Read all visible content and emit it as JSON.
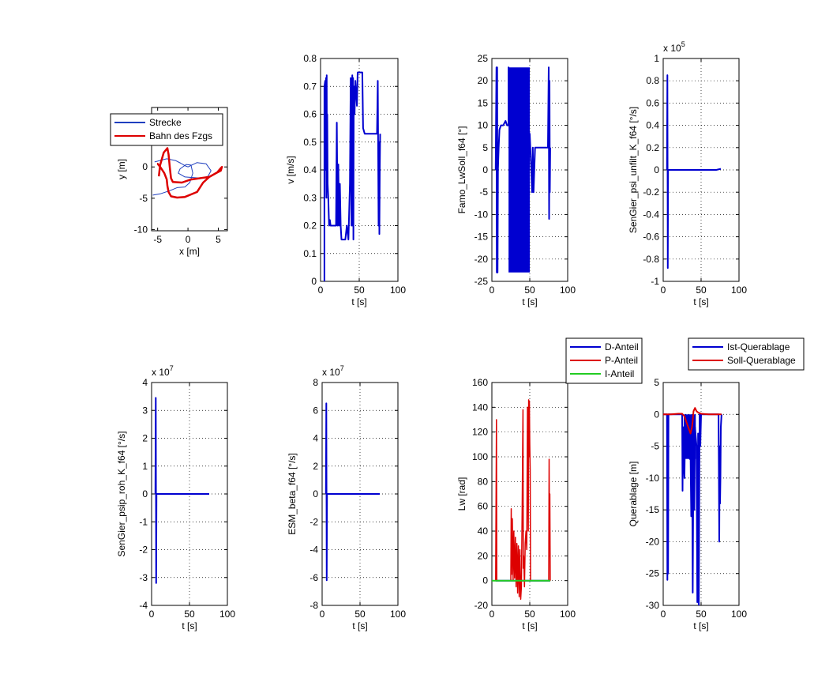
{
  "figure": {
    "background": "#ffffff"
  },
  "chart_data": [
    {
      "type": "line",
      "id": "trajectory",
      "xlabel": "x [m]",
      "ylabel": "y [m]",
      "xlim": [
        -6,
        6.5
      ],
      "ylim": [
        -10.2,
        9.5
      ],
      "xticks": [
        -5,
        0,
        5
      ],
      "yticks": [
        -10,
        -5,
        0
      ],
      "grid": false,
      "legend": {
        "position": "top-left",
        "entries": [
          "Strecke",
          "Bahn des Fzgs"
        ]
      },
      "series": [
        {
          "name": "Strecke",
          "color": "#1f3fbf",
          "width": 1,
          "x": [
            -5.5,
            -3.5,
            -2.0,
            -1.2,
            -0.5,
            0.0,
            1.5,
            3.0,
            3.8,
            3.3,
            2.2,
            1.0,
            -0.5,
            -1.6,
            -1.3,
            -0.3,
            0.5,
            0.8,
            0.3,
            -0.5,
            -1.8,
            -3.0,
            -4.6,
            -5.8
          ],
          "y": [
            0.8,
            1.3,
            1.0,
            0.6,
            0.2,
            0.0,
            0.7,
            0.5,
            -0.6,
            -1.5,
            -1.8,
            -1.7,
            -1.6,
            -1.0,
            -0.3,
            0.4,
            0.3,
            -1.0,
            -2.5,
            -3.2,
            -3.3,
            -3.8,
            -4.3,
            -4.5
          ]
        },
        {
          "name": "Bahn des Fzgs",
          "color": "#dd0000",
          "width": 2.5,
          "x": [
            -4.8,
            -4.6,
            -4.0,
            -3.4,
            -3.2,
            -3.0,
            -2.8,
            -2.5,
            -1.0,
            0.5,
            2.0,
            3.5,
            4.6,
            5.4,
            5.6,
            5.4,
            4.8,
            3.5,
            2.5,
            1.5,
            -0.5,
            -1.8,
            -2.8,
            -3.2,
            -3.4,
            -3.5,
            -3.9,
            -4.5,
            -5.0,
            -5.1
          ],
          "y": [
            -1.5,
            0.3,
            2.3,
            3.0,
            2.0,
            0.0,
            -1.8,
            -2.4,
            -2.5,
            -2.0,
            -1.8,
            -1.6,
            -1.0,
            -0.6,
            0.0,
            -0.2,
            -0.9,
            -1.6,
            -2.5,
            -4.0,
            -4.8,
            -4.9,
            -4.7,
            -4.0,
            -3.0,
            -2.0,
            -1.0,
            -0.1,
            0.5,
            0.5
          ]
        }
      ]
    },
    {
      "type": "line",
      "id": "velocity",
      "xlabel": "t [s]",
      "ylabel": "v [m/s]",
      "xlim": [
        0,
        100
      ],
      "ylim": [
        0,
        0.8
      ],
      "xticks": [
        0,
        50,
        100
      ],
      "yticks": [
        0,
        0.1,
        0.2,
        0.3,
        0.4,
        0.5,
        0.6,
        0.7,
        0.8
      ],
      "ytick_labels": [
        "0",
        "0.1",
        "0.2",
        "0.3",
        "0.4",
        "0.5",
        "0.6",
        "0.7",
        "0.8"
      ],
      "grid": true,
      "series": [
        {
          "name": "v",
          "color": "#0000d0",
          "width": 2,
          "x": [
            5,
            5,
            6,
            6.5,
            7,
            7.5,
            8,
            8.3,
            8.7,
            9.2,
            10,
            11,
            12,
            13,
            18,
            20,
            21,
            22,
            23,
            24,
            25,
            26,
            27,
            28,
            30,
            32,
            34,
            36,
            38,
            39,
            40,
            41,
            41.5,
            42,
            42.5,
            43,
            44,
            45,
            47,
            48,
            50,
            52,
            54,
            55,
            57,
            60,
            65,
            70,
            73,
            74,
            75,
            75.5,
            76,
            76.5,
            77
          ],
          "y": [
            0,
            0.7,
            0.72,
            0.4,
            0.73,
            0.3,
            0.74,
            0.34,
            0.6,
            0.35,
            0.3,
            0.2,
            0.22,
            0.2,
            0.2,
            0.2,
            0.57,
            0.2,
            0.42,
            0.2,
            0.35,
            0.2,
            0.15,
            0.15,
            0.15,
            0.15,
            0.2,
            0.15,
            0.35,
            0.73,
            0.2,
            0.74,
            0.2,
            0.73,
            0.15,
            0.7,
            0.6,
            0.72,
            0.63,
            0.75,
            0.75,
            0.75,
            0.75,
            0.55,
            0.53,
            0.53,
            0.53,
            0.53,
            0.53,
            0.72,
            0.2,
            0.5,
            0.17,
            0.4,
            0.53
          ]
        }
      ]
    },
    {
      "type": "line",
      "id": "steering",
      "xlabel": "t [s]",
      "ylabel": "Famo_LwSoll_f64 [°]",
      "xlim": [
        0,
        100
      ],
      "ylim": [
        -25,
        25
      ],
      "xticks": [
        0,
        50,
        100
      ],
      "yticks": [
        -25,
        -20,
        -15,
        -10,
        -5,
        0,
        5,
        10,
        15,
        20,
        25
      ],
      "ytick_labels": [
        "-25",
        "-20",
        "-15",
        "-10",
        "-5",
        "0",
        "5",
        "10",
        "15",
        "20",
        "25"
      ],
      "grid": true,
      "band": {
        "x_from": 22,
        "x_to": 50,
        "y_from": -23,
        "y_to": 23,
        "color": "#0000d0"
      },
      "series": [
        {
          "name": "Famo_LwSoll_f64",
          "color": "#0000d0",
          "width": 2,
          "x": [
            5,
            6,
            6.5,
            7,
            7.5,
            8,
            9,
            10,
            12,
            15,
            18,
            20,
            22,
            22,
            50,
            52,
            53,
            54,
            55,
            57,
            60,
            65,
            70,
            74,
            75,
            75.5,
            76,
            76.5,
            77
          ],
          "y": [
            0,
            23,
            -23,
            23,
            -23,
            0,
            5,
            9,
            10,
            10,
            11,
            10,
            10,
            23,
            8,
            0,
            -5,
            5,
            -5,
            5,
            5,
            5,
            5,
            5,
            23,
            -11,
            20,
            -5,
            5
          ]
        }
      ]
    },
    {
      "type": "line",
      "id": "yaw",
      "xlabel": "t [s]",
      "ylabel": "SenGier_psi_unfilt_K_f64 [°/s]",
      "exponent_label": "x 10",
      "exponent": "5",
      "xlim": [
        0,
        100
      ],
      "ylim": [
        -1,
        1
      ],
      "xticks": [
        0,
        50,
        100
      ],
      "yticks": [
        -1,
        -0.8,
        -0.6,
        -0.4,
        -0.2,
        0,
        0.2,
        0.4,
        0.6,
        0.8,
        1
      ],
      "ytick_labels": [
        "-1",
        "-0.8",
        "-0.6",
        "-0.4",
        "-0.2",
        "0",
        "0.2",
        "0.4",
        "0.6",
        "0.8",
        "1"
      ],
      "grid": true,
      "series": [
        {
          "name": "SenGier_psi_unfilt_K_f64",
          "color": "#0000d0",
          "width": 2,
          "x": [
            5,
            5.5,
            6,
            6.5,
            7,
            10,
            30,
            50,
            70,
            76
          ],
          "y": [
            0,
            0.85,
            -0.88,
            0,
            0,
            0,
            0,
            0,
            0,
            0.01
          ]
        }
      ]
    },
    {
      "type": "line",
      "id": "yawrate",
      "xlabel": "t [s]",
      "ylabel": "SenGier_psip_roh_K_f64 [°/s]",
      "exponent_label": "x 10",
      "exponent": "7",
      "xlim": [
        0,
        100
      ],
      "ylim": [
        -4,
        4
      ],
      "xticks": [
        0,
        50,
        100
      ],
      "yticks": [
        -4,
        -3,
        -2,
        -1,
        0,
        1,
        2,
        3,
        4
      ],
      "ytick_labels": [
        "-4",
        "-3",
        "-2",
        "-1",
        "0",
        "1",
        "2",
        "3",
        "4"
      ],
      "grid": true,
      "series": [
        {
          "name": "SenGier_psip_roh_K_f64",
          "color": "#0000d0",
          "width": 2,
          "x": [
            5,
            5.5,
            6,
            6.5,
            7,
            20,
            40,
            60,
            76
          ],
          "y": [
            0,
            3.45,
            -3.2,
            0,
            0,
            0,
            0,
            0,
            0
          ]
        }
      ]
    },
    {
      "type": "line",
      "id": "beta",
      "xlabel": "t [s]",
      "ylabel": "ESM_beta_f64 [°/s]",
      "exponent_label": "x 10",
      "exponent": "7",
      "xlim": [
        0,
        100
      ],
      "ylim": [
        -8,
        8
      ],
      "xticks": [
        0,
        50,
        100
      ],
      "yticks": [
        -8,
        -6,
        -4,
        -2,
        0,
        2,
        4,
        6,
        8
      ],
      "ytick_labels": [
        "-8",
        "-6",
        "-4",
        "-2",
        "0",
        "2",
        "4",
        "6",
        "8"
      ],
      "grid": true,
      "series": [
        {
          "name": "ESM_beta_f64",
          "color": "#0000d0",
          "width": 2,
          "x": [
            5,
            5.5,
            6,
            6.5,
            7,
            20,
            40,
            60,
            76
          ],
          "y": [
            0,
            6.5,
            -6.2,
            0,
            0,
            0,
            0,
            0,
            0
          ]
        }
      ]
    },
    {
      "type": "line",
      "id": "lw",
      "xlabel": "t [s]",
      "ylabel": "Lw [rad]",
      "xlim": [
        0,
        100
      ],
      "ylim": [
        -20,
        160
      ],
      "xticks": [
        0,
        50,
        100
      ],
      "yticks": [
        -20,
        0,
        20,
        40,
        60,
        80,
        100,
        120,
        140,
        160
      ],
      "ytick_labels": [
        "-20",
        "0",
        "20",
        "40",
        "60",
        "80",
        "100",
        "120",
        "140",
        "160"
      ],
      "grid": true,
      "legend": {
        "position": "outside-top",
        "entries": [
          "D-Anteil",
          "P-Anteil",
          "I-Anteil"
        ]
      },
      "series": [
        {
          "name": "D-Anteil",
          "color": "#0000d0",
          "width": 2,
          "x": [
            5,
            77
          ],
          "y": [
            0,
            0
          ]
        },
        {
          "name": "P-Anteil",
          "color": "#dd0000",
          "width": 1.5,
          "x": [
            5,
            6,
            6.5,
            7,
            20,
            25,
            25.5,
            26,
            27,
            28,
            29,
            30,
            31,
            32,
            33,
            34,
            35,
            36,
            37,
            38,
            39,
            40,
            40.5,
            41,
            41.5,
            42,
            43,
            44,
            45,
            46,
            47,
            48,
            48.5,
            49,
            49.5,
            50,
            50.5,
            51,
            52,
            55,
            60,
            70,
            75,
            75.5,
            76,
            76.5,
            77
          ],
          "y": [
            0,
            130,
            0,
            0,
            0,
            0,
            58,
            5,
            50,
            0,
            40,
            2,
            35,
            -5,
            30,
            -10,
            28,
            -13,
            25,
            -15,
            -5,
            60,
            100,
            138,
            10,
            20,
            -5,
            30,
            40,
            25,
            140,
            40,
            146,
            100,
            145,
            110,
            90,
            0,
            0,
            0,
            0,
            0,
            0,
            98,
            30,
            70,
            0
          ]
        },
        {
          "name": "I-Anteil",
          "color": "#22cc22",
          "width": 2,
          "x": [
            0,
            77
          ],
          "y": [
            0,
            0
          ]
        }
      ]
    },
    {
      "type": "line",
      "id": "querablage",
      "xlabel": "t [s]",
      "ylabel": "Querablage [m]",
      "xlim": [
        0,
        100
      ],
      "ylim": [
        -30,
        5
      ],
      "xticks": [
        0,
        50,
        100
      ],
      "yticks": [
        -30,
        -25,
        -20,
        -15,
        -10,
        -5,
        0,
        5
      ],
      "ytick_labels": [
        "-30",
        "-25",
        "-20",
        "-15",
        "-10",
        "-5",
        "0",
        "5"
      ],
      "grid": true,
      "legend": {
        "position": "outside-top",
        "entries": [
          "Ist-Querablage",
          "Soll-Querablage"
        ]
      },
      "band": {
        "x_from": 27,
        "x_to": 43,
        "y_from": -7,
        "y_to": 0,
        "color": "#0000d0"
      },
      "series": [
        {
          "name": "Ist-Querablage",
          "color": "#0000d0",
          "width": 2,
          "x": [
            0,
            5,
            5.5,
            6,
            6.5,
            7,
            10,
            20,
            25,
            25.5,
            26,
            27,
            28,
            29,
            30,
            31,
            32,
            33,
            34,
            35,
            36,
            37,
            38,
            39,
            40,
            41,
            42,
            44,
            45,
            46,
            47,
            48,
            49,
            50,
            51,
            52,
            53,
            60,
            70,
            73,
            74,
            74.5,
            75,
            75.5,
            76,
            77
          ],
          "y": [
            0,
            0,
            -26,
            -1,
            -25,
            0,
            0,
            0,
            0,
            -12,
            -2,
            -7,
            -10,
            -2,
            -6,
            -3,
            -5,
            -6,
            -4,
            -7,
            -6,
            -16,
            -5,
            -28,
            -3,
            -15,
            -2,
            -5,
            -29.5,
            -3,
            -30,
            0,
            -5,
            0,
            0,
            0,
            0,
            0,
            0,
            0,
            -20,
            -5,
            -14,
            -10,
            -2,
            0
          ]
        },
        {
          "name": "Soll-Querablage",
          "color": "#dd0000",
          "width": 2,
          "x": [
            0,
            10,
            20,
            25,
            28,
            30,
            33,
            36,
            38,
            39,
            40,
            42,
            44,
            46,
            50,
            60,
            70,
            77
          ],
          "y": [
            0,
            0,
            0.1,
            0.1,
            -0.3,
            -1.0,
            -2.0,
            -3.0,
            -2.0,
            -1.0,
            0.5,
            1.0,
            0.5,
            0.3,
            0.1,
            0,
            0,
            0
          ]
        }
      ]
    }
  ]
}
